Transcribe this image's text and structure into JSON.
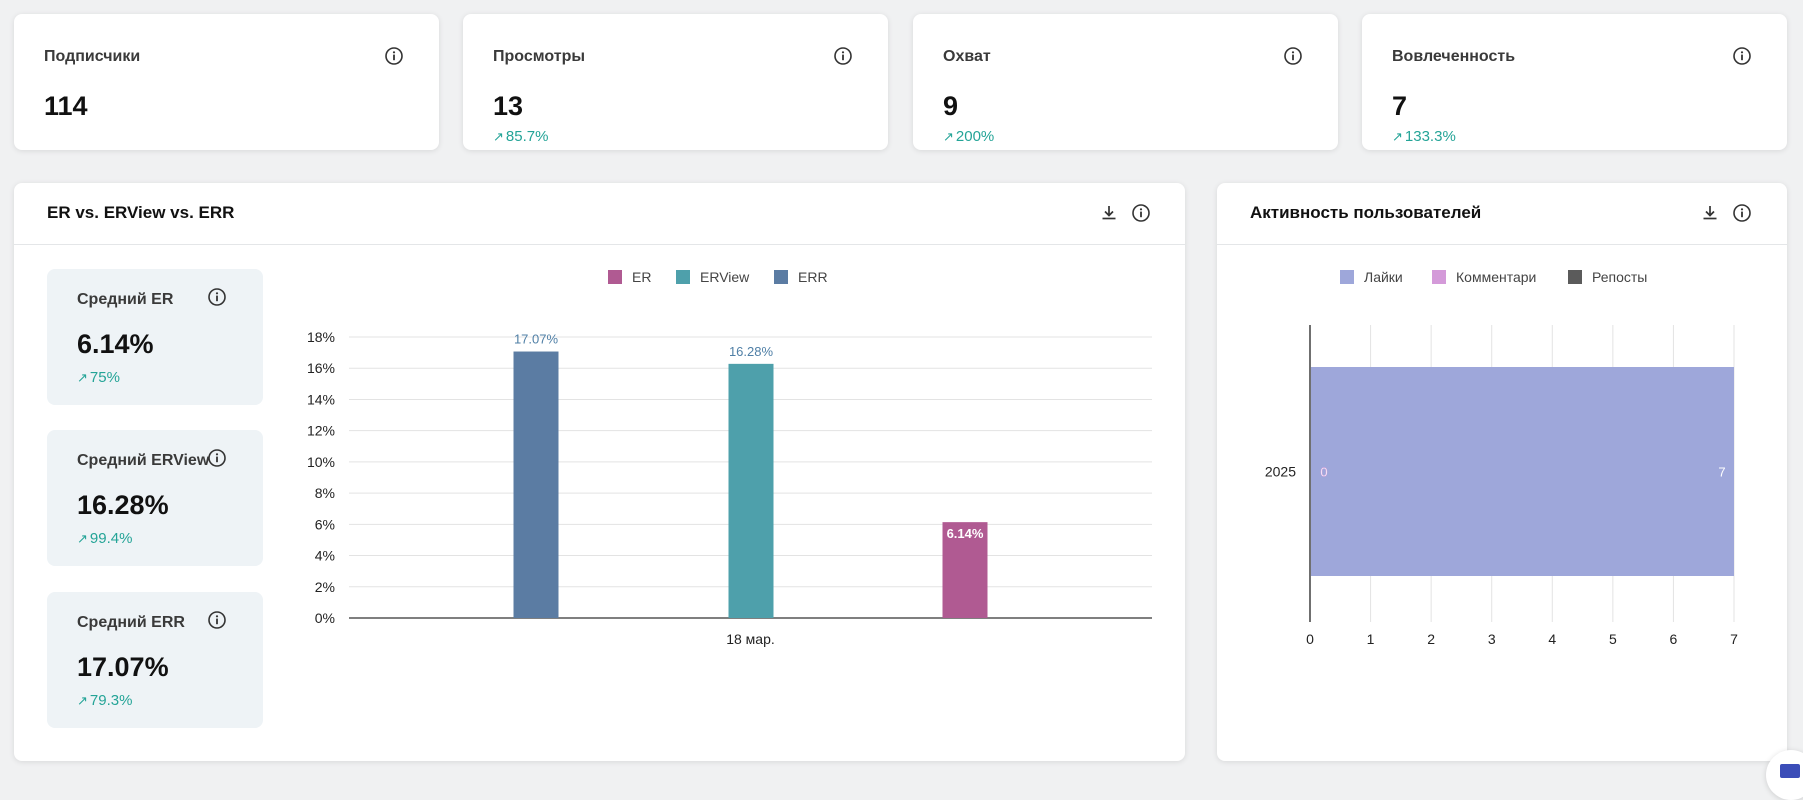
{
  "stats": [
    {
      "title": "Подписчики",
      "value": "114",
      "delta": ""
    },
    {
      "title": "Просмотры",
      "value": "13",
      "delta": "85.7%"
    },
    {
      "title": "Охват",
      "value": "9",
      "delta": "200%"
    },
    {
      "title": "Вовлеченность",
      "value": "7",
      "delta": "133.3%"
    }
  ],
  "er_panel": {
    "title": "ER vs. ERView vs. ERR",
    "cards": [
      {
        "title": "Средний ER",
        "value": "6.14%",
        "delta": "75%"
      },
      {
        "title": "Средний ERView",
        "value": "16.28%",
        "delta": "99.4%"
      },
      {
        "title": "Средний ERR",
        "value": "17.07%",
        "delta": "79.3%"
      }
    ]
  },
  "activity_panel": {
    "title": "Активность пользователей"
  },
  "colors": {
    "accent_delta": "#24a497",
    "er": "#b05a92",
    "erview": "#4ea0ab",
    "err": "#5b7ca3",
    "likes": "#9ea7da",
    "comments": "#d49ad9",
    "reposts": "#5b5b5b"
  },
  "icons": {
    "info": "info-circle-icon",
    "download": "download-icon",
    "trend": "arrow-up-right-icon"
  },
  "chart_data": [
    {
      "type": "bar",
      "legend": [
        "ER",
        "ERView",
        "ERR"
      ],
      "legend_placement": "top-center",
      "categories": [
        "18 мар."
      ],
      "series": [
        {
          "name": "ERR",
          "values": [
            17.07
          ],
          "label": "17.07%"
        },
        {
          "name": "ERView",
          "values": [
            16.28
          ],
          "label": "16.28%"
        },
        {
          "name": "ER",
          "values": [
            6.14
          ],
          "label": "6.14%"
        }
      ],
      "y_ticks": [
        "0%",
        "2%",
        "4%",
        "6%",
        "8%",
        "10%",
        "12%",
        "14%",
        "16%",
        "18%"
      ],
      "ylim": [
        0,
        18
      ],
      "grid": true
    },
    {
      "type": "bar",
      "orientation": "horizontal",
      "stacked": true,
      "legend": [
        "Лайки",
        "Комментари",
        "Репосты"
      ],
      "legend_placement": "top-center",
      "categories": [
        "2025"
      ],
      "series": [
        {
          "name": "Лайки",
          "values": [
            7
          ]
        },
        {
          "name": "Комментари",
          "values": [
            0
          ]
        },
        {
          "name": "Репосты",
          "values": [
            0
          ]
        }
      ],
      "bar_labels": [
        "0",
        "7"
      ],
      "x_ticks": [
        "0",
        "1",
        "2",
        "3",
        "4",
        "5",
        "6",
        "7"
      ],
      "xlim": [
        0,
        7
      ],
      "grid": true
    }
  ]
}
